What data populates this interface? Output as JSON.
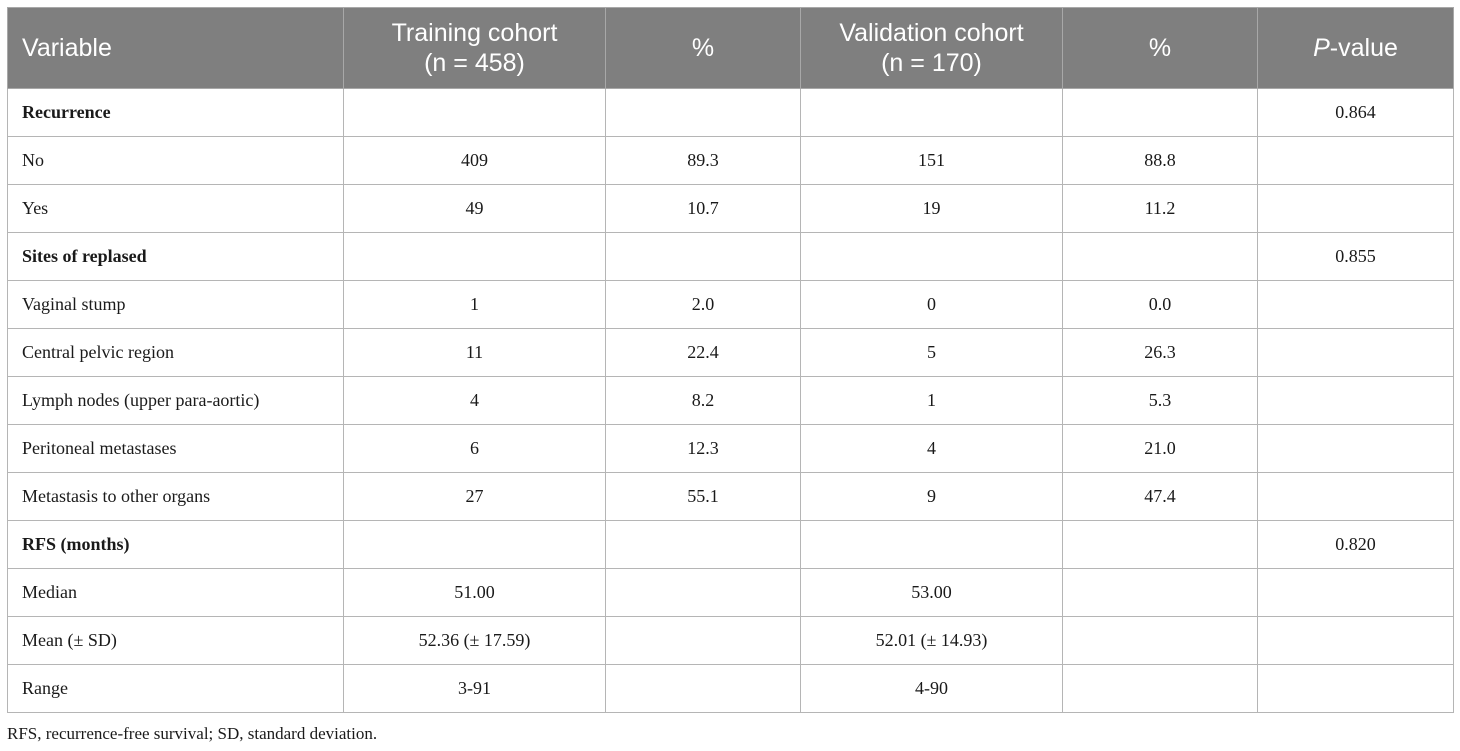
{
  "header": {
    "variable": "Variable",
    "training_line1": "Training cohort",
    "training_line2": "(n = 458)",
    "pct1": "%",
    "validation_line1": "Validation cohort",
    "validation_line2": "(n = 170)",
    "pct2": "%",
    "pvalue_italic": "P",
    "pvalue_rest": "-value"
  },
  "rows": [
    {
      "label": "Recurrence",
      "section": true,
      "train": "",
      "train_pct": "",
      "val": "",
      "val_pct": "",
      "p": "0.864"
    },
    {
      "label": "No",
      "section": false,
      "train": "409",
      "train_pct": "89.3",
      "val": "151",
      "val_pct": "88.8",
      "p": ""
    },
    {
      "label": "Yes",
      "section": false,
      "train": "49",
      "train_pct": "10.7",
      "val": "19",
      "val_pct": "11.2",
      "p": ""
    },
    {
      "label": "Sites of replased",
      "section": true,
      "train": "",
      "train_pct": "",
      "val": "",
      "val_pct": "",
      "p": "0.855"
    },
    {
      "label": "Vaginal stump",
      "section": false,
      "train": "1",
      "train_pct": "2.0",
      "val": "0",
      "val_pct": "0.0",
      "p": ""
    },
    {
      "label": "Central pelvic region",
      "section": false,
      "train": "11",
      "train_pct": "22.4",
      "val": "5",
      "val_pct": "26.3",
      "p": ""
    },
    {
      "label": "Lymph nodes (upper para-aortic)",
      "section": false,
      "train": "4",
      "train_pct": "8.2",
      "val": "1",
      "val_pct": "5.3",
      "p": ""
    },
    {
      "label": "Peritoneal metastases",
      "section": false,
      "train": "6",
      "train_pct": "12.3",
      "val": "4",
      "val_pct": "21.0",
      "p": ""
    },
    {
      "label": "Metastasis to other organs",
      "section": false,
      "train": "27",
      "train_pct": "55.1",
      "val": "9",
      "val_pct": "47.4",
      "p": ""
    },
    {
      "label": "RFS (months)",
      "section": true,
      "train": "",
      "train_pct": "",
      "val": "",
      "val_pct": "",
      "p": "0.820"
    },
    {
      "label": "Median",
      "section": false,
      "train": "51.00",
      "train_pct": "",
      "val": "53.00",
      "val_pct": "",
      "p": ""
    },
    {
      "label": "Mean (± SD)",
      "section": false,
      "train": "52.36 (± 17.59)",
      "train_pct": "",
      "val": "52.01 (± 14.93)",
      "val_pct": "",
      "p": ""
    },
    {
      "label": "Range",
      "section": false,
      "train": "3-91",
      "train_pct": "",
      "val": "4-90",
      "val_pct": "",
      "p": ""
    }
  ],
  "footnote": "RFS, recurrence-free survival; SD, standard deviation.",
  "colors": {
    "header_bg": "#7f7f7f",
    "header_text": "#ffffff",
    "grid": "#b5b5b5"
  }
}
